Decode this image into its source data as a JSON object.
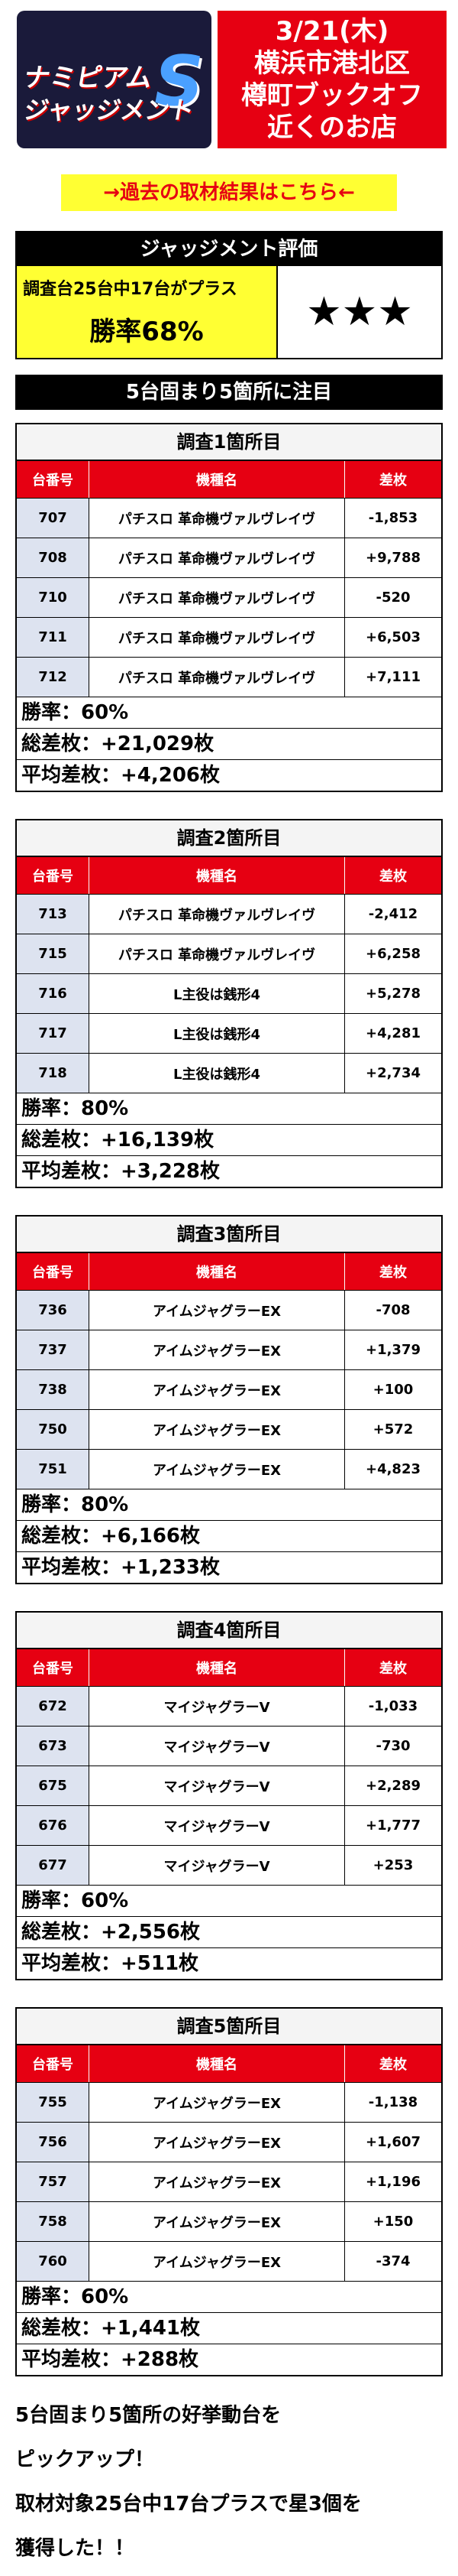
{
  "header": {
    "logo": {
      "line1": "ナミピアム",
      "line2": "ジャッジメント",
      "mark": "S"
    },
    "date": "3/21(木)",
    "lines": [
      "横浜市港北区",
      "樽町ブックオフ",
      "近くのお店"
    ]
  },
  "link": "→過去の取材結果はこちら←",
  "judgment": {
    "title": "ジャッジメント評価",
    "summary": "調査台25台中17台がプラス",
    "rate": "勝率68%",
    "stars": "★★★"
  },
  "banner": "5台固まり5箇所に注目",
  "table_header": [
    "台番号",
    "機種名",
    "差枚"
  ],
  "sections": [
    {
      "title": "調査1箇所目",
      "rows": [
        [
          "707",
          "パチスロ 革命機ヴァルヴレイヴ",
          "-1,853"
        ],
        [
          "708",
          "パチスロ 革命機ヴァルヴレイヴ",
          "+9,788"
        ],
        [
          "710",
          "パチスロ 革命機ヴァルヴレイヴ",
          "-520"
        ],
        [
          "711",
          "パチスロ 革命機ヴァルヴレイヴ",
          "+6,503"
        ],
        [
          "712",
          "パチスロ 革命機ヴァルヴレイヴ",
          "+7,111"
        ]
      ],
      "summary": [
        "勝率：60%",
        "総差枚：+21,029枚",
        "平均差枚：+4,206枚"
      ]
    },
    {
      "title": "調査2箇所目",
      "rows": [
        [
          "713",
          "パチスロ 革命機ヴァルヴレイヴ",
          "-2,412"
        ],
        [
          "715",
          "パチスロ 革命機ヴァルヴレイヴ",
          "+6,258"
        ],
        [
          "716",
          "L主役は銭形4",
          "+5,278"
        ],
        [
          "717",
          "L主役は銭形4",
          "+4,281"
        ],
        [
          "718",
          "L主役は銭形4",
          "+2,734"
        ]
      ],
      "summary": [
        "勝率：80%",
        "総差枚：+16,139枚",
        "平均差枚：+3,228枚"
      ]
    },
    {
      "title": "調査3箇所目",
      "rows": [
        [
          "736",
          "アイムジャグラーEX",
          "-708"
        ],
        [
          "737",
          "アイムジャグラーEX",
          "+1,379"
        ],
        [
          "738",
          "アイムジャグラーEX",
          "+100"
        ],
        [
          "750",
          "アイムジャグラーEX",
          "+572"
        ],
        [
          "751",
          "アイムジャグラーEX",
          "+4,823"
        ]
      ],
      "summary": [
        "勝率：80%",
        "総差枚：+6,166枚",
        "平均差枚：+1,233枚"
      ]
    },
    {
      "title": "調査4箇所目",
      "rows": [
        [
          "672",
          "マイジャグラーV",
          "-1,033"
        ],
        [
          "673",
          "マイジャグラーV",
          "-730"
        ],
        [
          "675",
          "マイジャグラーV",
          "+2,289"
        ],
        [
          "676",
          "マイジャグラーV",
          "+1,777"
        ],
        [
          "677",
          "マイジャグラーV",
          "+253"
        ]
      ],
      "summary": [
        "勝率：60%",
        "総差枚：+2,556枚",
        "平均差枚：+511枚"
      ]
    },
    {
      "title": "調査5箇所目",
      "rows": [
        [
          "755",
          "アイムジャグラーEX",
          "-1,138"
        ],
        [
          "756",
          "アイムジャグラーEX",
          "+1,607"
        ],
        [
          "757",
          "アイムジャグラーEX",
          "+1,196"
        ],
        [
          "758",
          "アイムジャグラーEX",
          "+150"
        ],
        [
          "760",
          "アイムジャグラーEX",
          "-374"
        ]
      ],
      "summary": [
        "勝率：60%",
        "総差枚：+1,441枚",
        "平均差枚：+288枚"
      ]
    }
  ],
  "footer": [
    "5台固まり5箇所の好挙動台を",
    "ピックアップ！",
    "取材対象25台中17台プラスで星3個を",
    "獲得した！！"
  ]
}
